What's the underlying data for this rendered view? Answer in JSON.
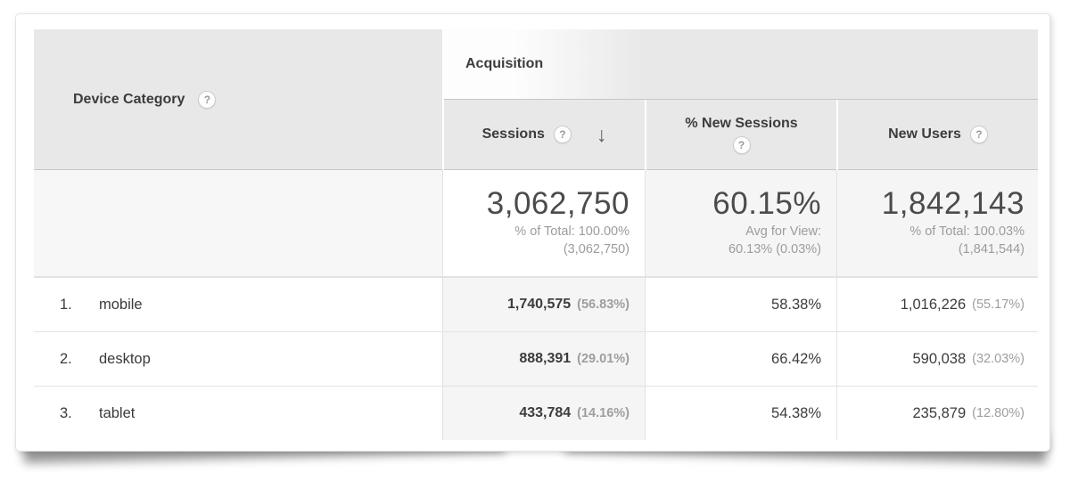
{
  "table": {
    "dimension_header": {
      "label": "Device Category",
      "help": "?"
    },
    "group_header": {
      "label": "Acquisition"
    },
    "metric_headers": {
      "sessions": {
        "label": "Sessions",
        "help": "?",
        "sort_arrow": "↓",
        "sort": "descending"
      },
      "pct_new_sessions": {
        "label": "% New Sessions",
        "help": "?"
      },
      "new_users": {
        "label": "New Users",
        "help": "?"
      }
    },
    "summary": {
      "sessions": {
        "value": "3,062,750",
        "sub1": "% of Total: 100.00%",
        "sub2": "(3,062,750)"
      },
      "pct_new_sessions": {
        "value": "60.15%",
        "sub1": "Avg for View:",
        "sub2": "60.13% (0.03%)"
      },
      "new_users": {
        "value": "1,842,143",
        "sub1": "% of Total: 100.03%",
        "sub2": "(1,841,544)"
      }
    },
    "rows": [
      {
        "index": "1.",
        "dimension": "mobile",
        "sessions": "1,740,575",
        "sessions_pct": "(56.83%)",
        "pct_new_sessions": "58.38%",
        "new_users": "1,016,226",
        "new_users_pct": "(55.17%)"
      },
      {
        "index": "2.",
        "dimension": "desktop",
        "sessions": "888,391",
        "sessions_pct": "(29.01%)",
        "pct_new_sessions": "66.42%",
        "new_users": "590,038",
        "new_users_pct": "(32.03%)"
      },
      {
        "index": "3.",
        "dimension": "tablet",
        "sessions": "433,784",
        "sessions_pct": "(14.16%)",
        "pct_new_sessions": "54.38%",
        "new_users": "235,879",
        "new_users_pct": "(12.80%)"
      }
    ]
  },
  "colors": {
    "header_bg": "#e8e8e8",
    "summary_shade": "#f5f5f5",
    "sorted_column_shade": "#f5f5f5",
    "border": "#e2e2e2",
    "text_dark": "#3c3c3c",
    "text_gray": "#9c9c9c"
  }
}
